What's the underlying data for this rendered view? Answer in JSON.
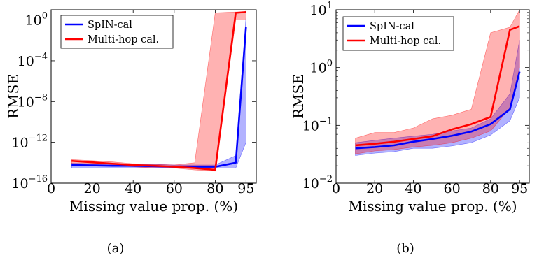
{
  "chart_data": [
    {
      "type": "line",
      "panel_label": "(a)",
      "xlabel": "Missing value prop. (%)",
      "ylabel": "RMSE",
      "yscale": "log",
      "xlim": [
        0,
        100
      ],
      "ylim": [
        1e-16,
        10
      ],
      "xticks": [
        0,
        20,
        40,
        60,
        80,
        95
      ],
      "yticks": [
        1e-16,
        1e-12,
        1e-08,
        0.0001,
        1
      ],
      "ytick_labels": [
        {
          "base": "10",
          "exp": "−16"
        },
        {
          "base": "10",
          "exp": "−12"
        },
        {
          "base": "10",
          "exp": "−8"
        },
        {
          "base": "10",
          "exp": "−4"
        },
        {
          "base": "10",
          "exp": "0"
        }
      ],
      "legend_position": "top-left",
      "series": [
        {
          "name": "SpIN-cal",
          "color": "#0000ff",
          "x": [
            10,
            20,
            30,
            40,
            50,
            60,
            70,
            80,
            90,
            95
          ],
          "y": [
            6e-15,
            5.5e-15,
            5e-15,
            5e-15,
            4.5e-15,
            4e-15,
            4e-15,
            4e-15,
            1e-14,
            0.2
          ],
          "lower": [
            3e-15,
            3e-15,
            3e-15,
            3e-15,
            3e-15,
            3e-15,
            3e-15,
            3e-15,
            3e-15,
            1e-12
          ],
          "upper": [
            9e-15,
            8e-15,
            8e-15,
            7e-15,
            7e-15,
            6e-15,
            6e-15,
            6e-15,
            5e-14,
            2
          ]
        },
        {
          "name": "Multi-hop cal.",
          "color": "#ff0000",
          "x": [
            10,
            20,
            30,
            40,
            50,
            60,
            70,
            80,
            90,
            95
          ],
          "y": [
            1.5e-14,
            1.1e-14,
            8e-15,
            6e-15,
            5e-15,
            4e-15,
            3e-15,
            2e-15,
            5,
            6
          ],
          "lower": [
            8e-15,
            6e-15,
            5e-15,
            4e-15,
            3e-15,
            3e-15,
            2e-15,
            1.5e-15,
            1,
            1
          ],
          "upper": [
            2e-14,
            1.6e-14,
            1.2e-14,
            8e-15,
            7e-15,
            6e-15,
            1e-14,
            5,
            6,
            6
          ]
        }
      ]
    },
    {
      "type": "line",
      "panel_label": "(b)",
      "xlabel": "Missing value prop. (%)",
      "ylabel": "RMSE",
      "yscale": "log",
      "xlim": [
        0,
        100
      ],
      "ylim": [
        0.01,
        10
      ],
      "xticks": [
        0,
        20,
        40,
        60,
        80,
        95
      ],
      "yticks": [
        0.01,
        0.1,
        1,
        10
      ],
      "ytick_labels": [
        {
          "base": "10",
          "exp": "−2"
        },
        {
          "base": "10",
          "exp": "−1"
        },
        {
          "base": "10",
          "exp": "0"
        },
        {
          "base": "10",
          "exp": "1"
        }
      ],
      "legend_position": "top-left",
      "series": [
        {
          "name": "SpIN-cal",
          "color": "#0000ff",
          "x": [
            10,
            20,
            30,
            40,
            50,
            60,
            70,
            80,
            90,
            95
          ],
          "y": [
            0.04,
            0.042,
            0.045,
            0.052,
            0.058,
            0.066,
            0.078,
            0.105,
            0.19,
            0.85
          ],
          "lower": [
            0.03,
            0.033,
            0.035,
            0.04,
            0.04,
            0.044,
            0.05,
            0.068,
            0.12,
            0.3
          ],
          "upper": [
            0.05,
            0.055,
            0.06,
            0.065,
            0.07,
            0.08,
            0.09,
            0.13,
            0.35,
            3
          ]
        },
        {
          "name": "Multi-hop cal.",
          "color": "#ff0000",
          "x": [
            10,
            20,
            30,
            40,
            50,
            60,
            70,
            80,
            90,
            95
          ],
          "y": [
            0.045,
            0.048,
            0.052,
            0.058,
            0.065,
            0.085,
            0.105,
            0.14,
            4.5,
            5.2
          ],
          "lower": [
            0.032,
            0.036,
            0.038,
            0.042,
            0.045,
            0.05,
            0.06,
            0.08,
            0.2,
            1
          ],
          "upper": [
            0.06,
            0.075,
            0.075,
            0.09,
            0.13,
            0.15,
            0.19,
            4,
            5,
            10
          ]
        }
      ]
    }
  ]
}
